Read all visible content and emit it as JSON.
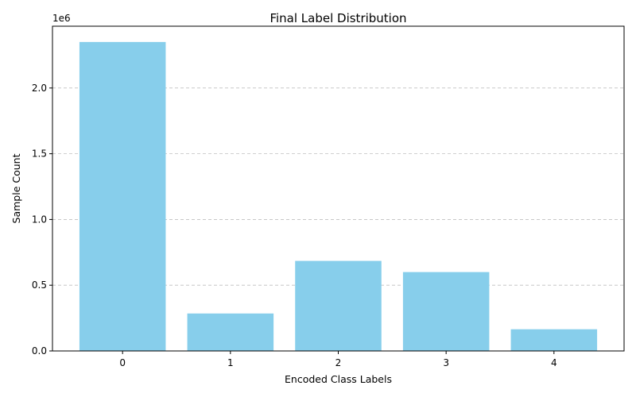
{
  "chart_data": {
    "type": "bar",
    "title": "Final Label Distribution",
    "xlabel": "Encoded Class Labels",
    "ylabel": "Sample Count",
    "y_offset_label": "1e6",
    "categories": [
      "0",
      "1",
      "2",
      "3",
      "4"
    ],
    "values": [
      2350000,
      285000,
      685000,
      600000,
      165000
    ],
    "ylim": [
      0,
      2470000
    ],
    "yticks": [
      0,
      500000,
      1000000,
      1500000,
      2000000
    ],
    "ytick_labels": [
      "0.0",
      "0.5",
      "1.0",
      "1.5",
      "2.0"
    ],
    "bar_color": "#87ceeb",
    "grid": "y-dashed"
  }
}
